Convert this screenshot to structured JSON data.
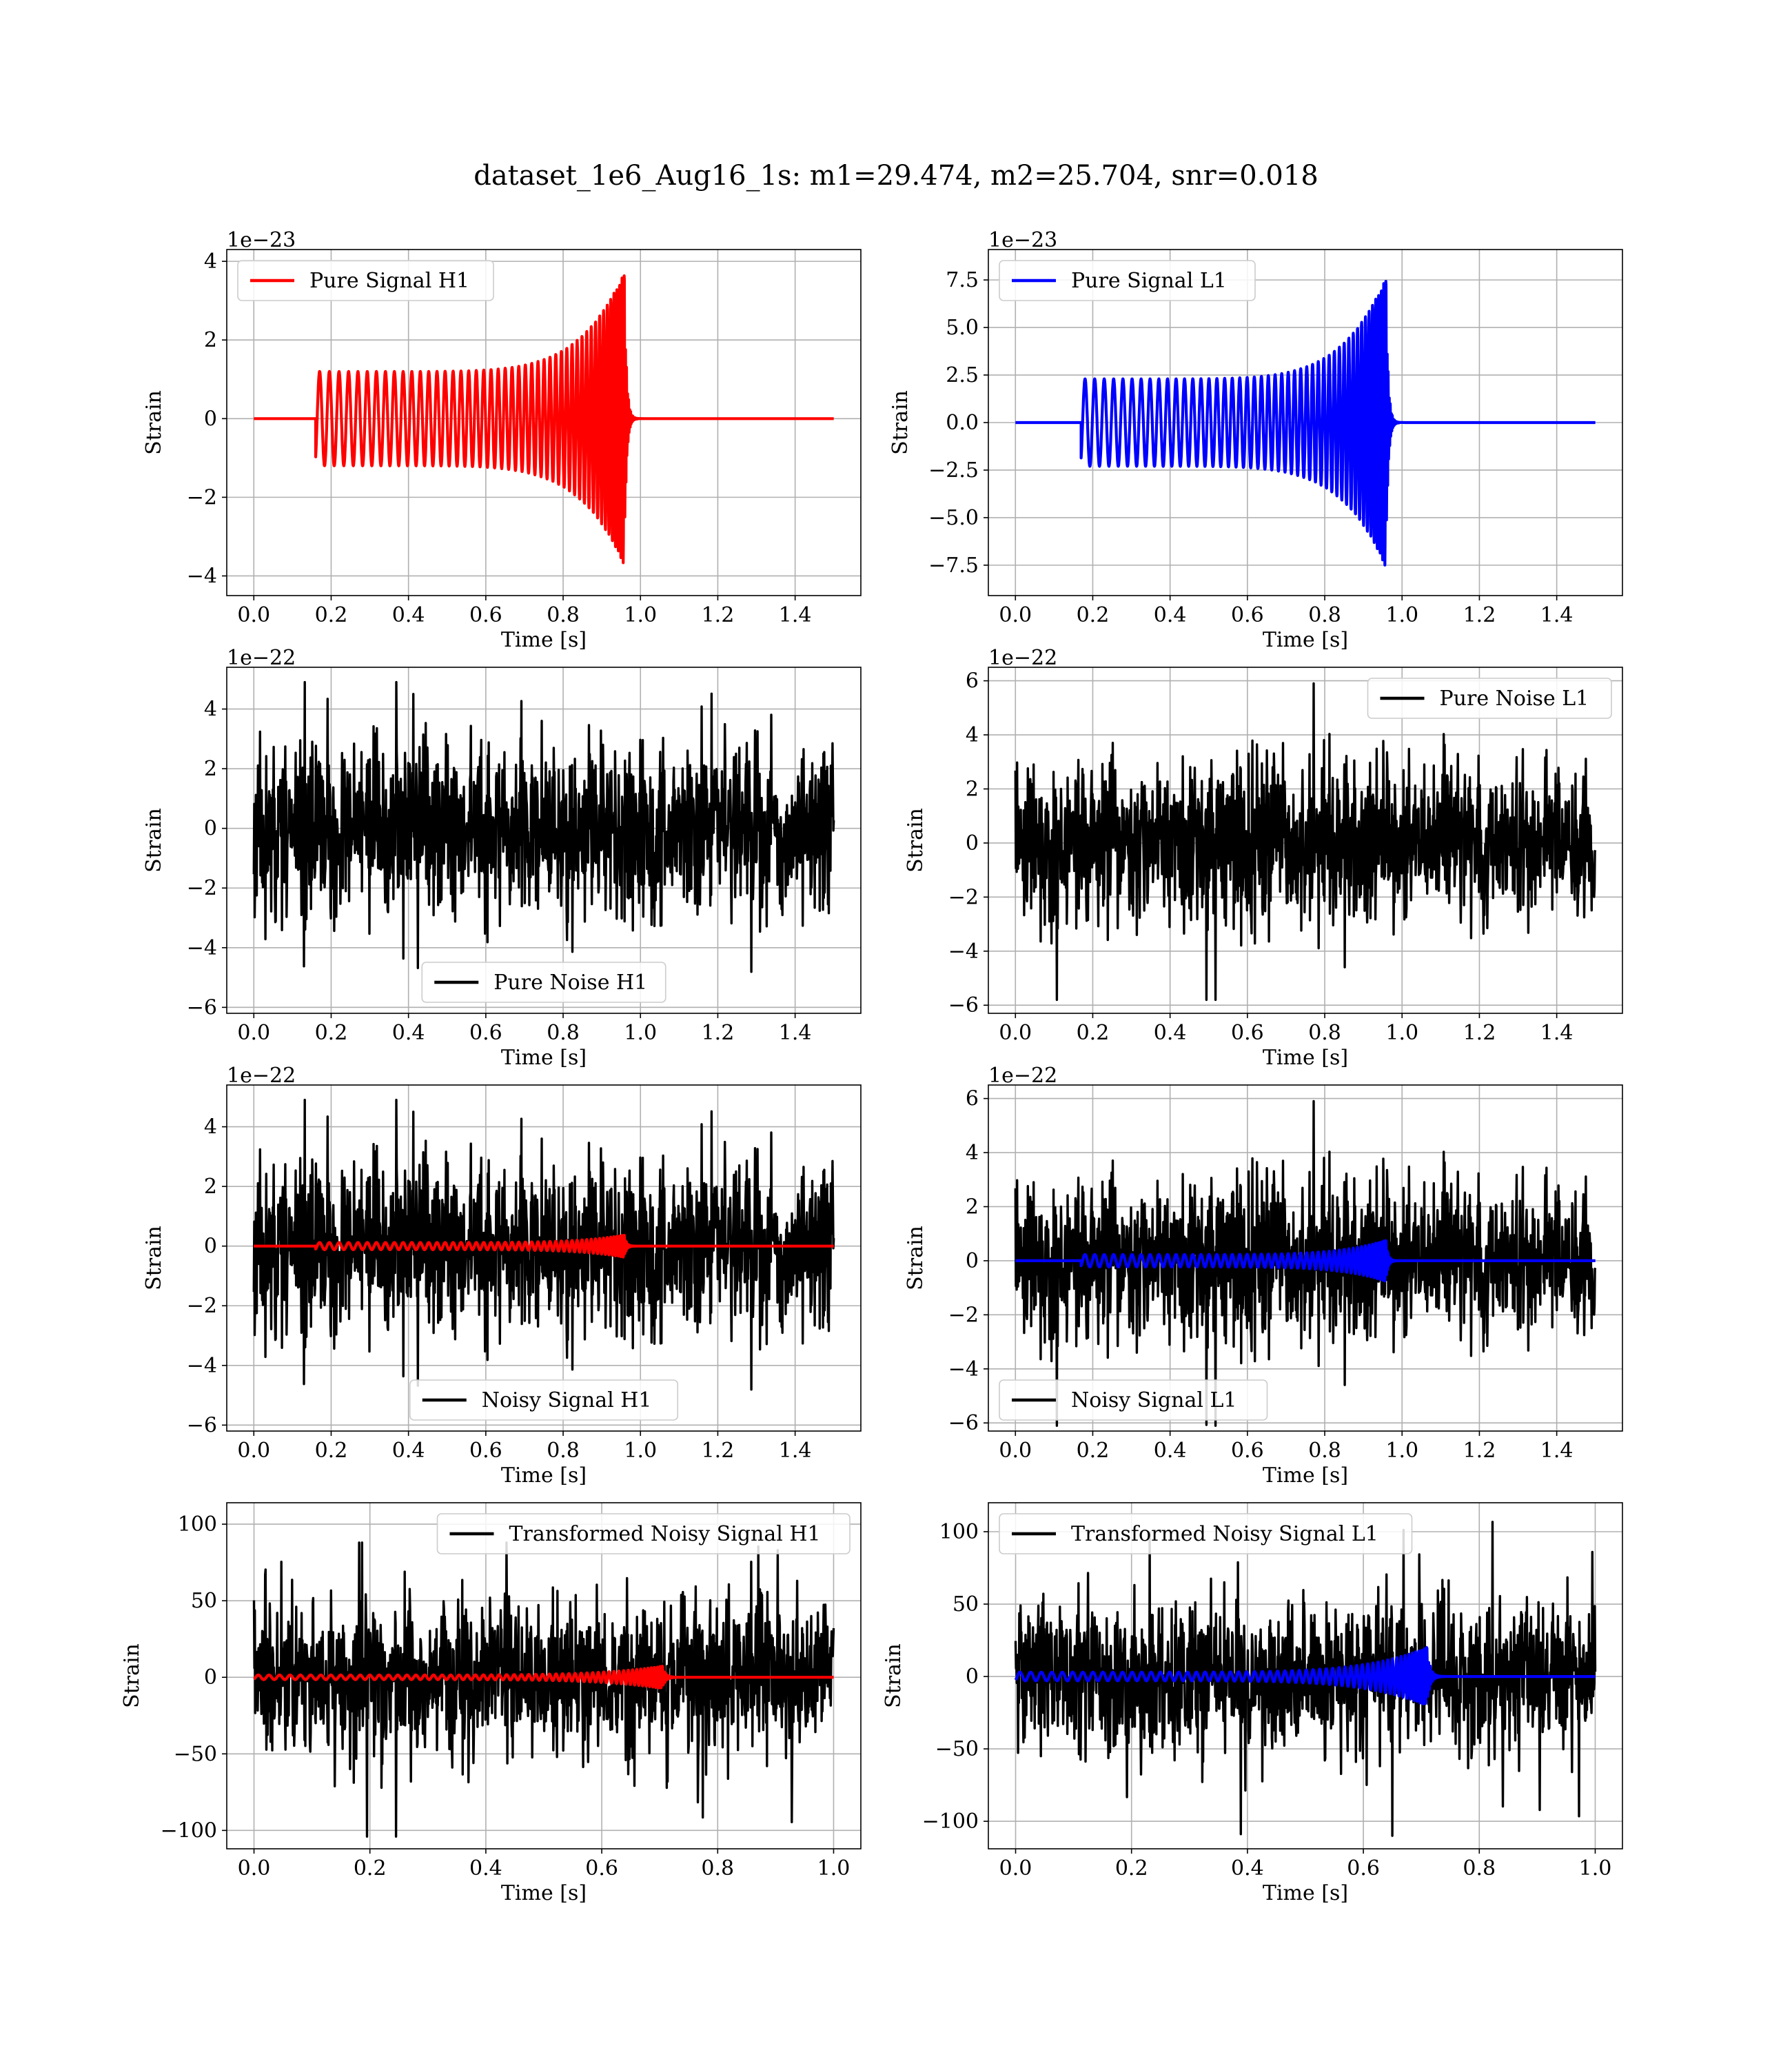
{
  "figure": {
    "suptitle": "dataset_1e6_Aug16_1s: m1=29.474, m2=25.704, snr=0.018"
  },
  "chart_data": [
    {
      "type": "line",
      "xlabel": "Time [s]",
      "ylabel": "Strain",
      "offset_text": "1e−23",
      "xlim": [
        -0.07,
        1.57
      ],
      "ylim": [
        -4.5,
        4.3
      ],
      "xticks": [
        0.0,
        0.2,
        0.4,
        0.6,
        0.8,
        1.0,
        1.2,
        1.4
      ],
      "xtick_labels": [
        "0.0",
        "0.2",
        "0.4",
        "0.6",
        "0.8",
        "1.0",
        "1.2",
        "1.4"
      ],
      "yticks": [
        -4,
        -2,
        0,
        2,
        4
      ],
      "ytick_labels": [
        "−4",
        "−2",
        "0",
        "2",
        "4"
      ],
      "grid": true,
      "legend_position": "upper left",
      "series": [
        {
          "name": "Pure Signal H1",
          "color": "#ff0000",
          "kind": "chirp",
          "t_start": 0.16,
          "t_merge": 0.97,
          "t_end": 1.5,
          "amp_start": 1.2,
          "amp_peak": 4.0,
          "n_cycles": 33
        }
      ]
    },
    {
      "type": "line",
      "xlabel": "Time [s]",
      "ylabel": "Strain",
      "offset_text": "1e−23",
      "xlim": [
        -0.07,
        1.57
      ],
      "ylim": [
        -9.1,
        9.1
      ],
      "xticks": [
        0.0,
        0.2,
        0.4,
        0.6,
        0.8,
        1.0,
        1.2,
        1.4
      ],
      "xtick_labels": [
        "0.0",
        "0.2",
        "0.4",
        "0.6",
        "0.8",
        "1.0",
        "1.2",
        "1.4"
      ],
      "yticks": [
        -7.5,
        -5.0,
        -2.5,
        0.0,
        2.5,
        5.0,
        7.5
      ],
      "ytick_labels": [
        "−7.5",
        "−5.0",
        "−2.5",
        "0.0",
        "2.5",
        "5.0",
        "7.5"
      ],
      "grid": true,
      "legend_position": "upper left",
      "series": [
        {
          "name": "Pure Signal L1",
          "color": "#0000ff",
          "kind": "chirp",
          "t_start": 0.17,
          "t_merge": 0.97,
          "t_end": 1.5,
          "amp_start": 2.3,
          "amp_peak": 8.2,
          "n_cycles": 33
        }
      ]
    },
    {
      "type": "line",
      "xlabel": "Time [s]",
      "ylabel": "Strain",
      "offset_text": "1e−22",
      "xlim": [
        -0.07,
        1.57
      ],
      "ylim": [
        -6.2,
        5.4
      ],
      "xticks": [
        0.0,
        0.2,
        0.4,
        0.6,
        0.8,
        1.0,
        1.2,
        1.4
      ],
      "xtick_labels": [
        "0.0",
        "0.2",
        "0.4",
        "0.6",
        "0.8",
        "1.0",
        "1.2",
        "1.4"
      ],
      "yticks": [
        -6,
        -4,
        -2,
        0,
        2,
        4
      ],
      "ytick_labels": [
        "−6",
        "−4",
        "−2",
        "0",
        "2",
        "4"
      ],
      "grid": true,
      "legend_position": "lower center",
      "series": [
        {
          "name": "Pure Noise H1",
          "color": "#000000",
          "kind": "noise",
          "t_start": 0.0,
          "t_end": 1.5,
          "sigma": 1.5,
          "max": 4.9,
          "min": -5.7,
          "seed": 11
        }
      ]
    },
    {
      "type": "line",
      "xlabel": "Time [s]",
      "ylabel": "Strain",
      "offset_text": "1e−22",
      "xlim": [
        -0.07,
        1.57
      ],
      "ylim": [
        -6.3,
        6.5
      ],
      "xticks": [
        0.0,
        0.2,
        0.4,
        0.6,
        0.8,
        1.0,
        1.2,
        1.4
      ],
      "xtick_labels": [
        "0.0",
        "0.2",
        "0.4",
        "0.6",
        "0.8",
        "1.0",
        "1.2",
        "1.4"
      ],
      "yticks": [
        -6,
        -4,
        -2,
        0,
        2,
        4,
        6
      ],
      "ytick_labels": [
        "−6",
        "−4",
        "−2",
        "0",
        "2",
        "4",
        "6"
      ],
      "grid": true,
      "legend_position": "upper right",
      "series": [
        {
          "name": "Pure Noise L1",
          "color": "#000000",
          "kind": "noise",
          "t_start": 0.0,
          "t_end": 1.5,
          "sigma": 1.5,
          "max": 5.9,
          "min": -5.8,
          "seed": 23
        }
      ]
    },
    {
      "type": "line",
      "xlabel": "Time [s]",
      "ylabel": "Strain",
      "offset_text": "1e−22",
      "xlim": [
        -0.07,
        1.57
      ],
      "ylim": [
        -6.2,
        5.4
      ],
      "xticks": [
        0.0,
        0.2,
        0.4,
        0.6,
        0.8,
        1.0,
        1.2,
        1.4
      ],
      "xtick_labels": [
        "0.0",
        "0.2",
        "0.4",
        "0.6",
        "0.8",
        "1.0",
        "1.2",
        "1.4"
      ],
      "yticks": [
        -6,
        -4,
        -2,
        0,
        2,
        4
      ],
      "ytick_labels": [
        "−6",
        "−4",
        "−2",
        "0",
        "2",
        "4"
      ],
      "grid": true,
      "legend_position": "lower center",
      "series": [
        {
          "name": "Noisy Signal H1",
          "color": "#000000",
          "kind": "noise",
          "t_start": 0.0,
          "t_end": 1.5,
          "sigma": 1.5,
          "max": 4.9,
          "min": -5.7,
          "seed": 11
        },
        {
          "color": "#ff0000",
          "kind": "chirp",
          "t_start": 0.16,
          "t_merge": 0.97,
          "t_end": 1.5,
          "amp_start": 0.12,
          "amp_peak": 0.4,
          "n_cycles": 33
        }
      ]
    },
    {
      "type": "line",
      "xlabel": "Time [s]",
      "ylabel": "Strain",
      "offset_text": "1e−22",
      "xlim": [
        -0.07,
        1.57
      ],
      "ylim": [
        -6.3,
        6.5
      ],
      "xticks": [
        0.0,
        0.2,
        0.4,
        0.6,
        0.8,
        1.0,
        1.2,
        1.4
      ],
      "xtick_labels": [
        "0.0",
        "0.2",
        "0.4",
        "0.6",
        "0.8",
        "1.0",
        "1.2",
        "1.4"
      ],
      "yticks": [
        -6,
        -4,
        -2,
        0,
        2,
        4,
        6
      ],
      "ytick_labels": [
        "−6",
        "−4",
        "−2",
        "0",
        "2",
        "4",
        "6"
      ],
      "grid": true,
      "legend_position": "lower left",
      "series": [
        {
          "name": "Noisy Signal L1",
          "color": "#000000",
          "kind": "noise",
          "t_start": 0.0,
          "t_end": 1.5,
          "sigma": 1.5,
          "max": 5.9,
          "min": -6.1,
          "seed": 23
        },
        {
          "color": "#0000ff",
          "kind": "chirp",
          "t_start": 0.17,
          "t_end": 1.5,
          "t_merge": 0.97,
          "amp_start": 0.23,
          "amp_peak": 0.82,
          "n_cycles": 33
        }
      ]
    },
    {
      "type": "line",
      "xlabel": "Time [s]",
      "ylabel": "Strain",
      "offset_text": "",
      "xlim": [
        -0.047,
        1.047
      ],
      "ylim": [
        -112,
        114
      ],
      "xticks": [
        0.0,
        0.2,
        0.4,
        0.6,
        0.8,
        1.0
      ],
      "xtick_labels": [
        "0.0",
        "0.2",
        "0.4",
        "0.6",
        "0.8",
        "1.0"
      ],
      "yticks": [
        -100,
        -50,
        0,
        50,
        100
      ],
      "ytick_labels": [
        "−100",
        "−50",
        "0",
        "50",
        "100"
      ],
      "grid": true,
      "legend_position": "upper right",
      "series": [
        {
          "name": "Transformed Noisy Signal H1",
          "color": "#000000",
          "kind": "noise",
          "t_start": 0.0,
          "t_end": 1.0,
          "sigma": 27,
          "max": 88,
          "min": -104,
          "seed": 37
        },
        {
          "color": "#ff0000",
          "kind": "chirp",
          "t_start": 0.0,
          "t_merge": 0.715,
          "t_end": 1.0,
          "amp_start": 1.5,
          "amp_peak": 8,
          "n_cycles": 40
        }
      ]
    },
    {
      "type": "line",
      "xlabel": "Time [s]",
      "ylabel": "Strain",
      "offset_text": "",
      "xlim": [
        -0.047,
        1.047
      ],
      "ylim": [
        -119,
        120
      ],
      "xticks": [
        0.0,
        0.2,
        0.4,
        0.6,
        0.8,
        1.0
      ],
      "xtick_labels": [
        "0.0",
        "0.2",
        "0.4",
        "0.6",
        "0.8",
        "1.0"
      ],
      "yticks": [
        -100,
        -50,
        0,
        50,
        100
      ],
      "ytick_labels": [
        "−100",
        "−50",
        "0",
        "50",
        "100"
      ],
      "grid": true,
      "legend_position": "upper left",
      "series": [
        {
          "name": "Transformed Noisy Signal L1",
          "color": "#000000",
          "kind": "noise",
          "t_start": 0.0,
          "t_end": 1.0,
          "sigma": 27,
          "max": 110,
          "min": -110,
          "seed": 53
        },
        {
          "color": "#0000ff",
          "kind": "chirp",
          "t_start": 0.0,
          "t_merge": 0.72,
          "t_end": 1.0,
          "amp_start": 3,
          "amp_peak": 22,
          "n_cycles": 40
        }
      ]
    }
  ]
}
